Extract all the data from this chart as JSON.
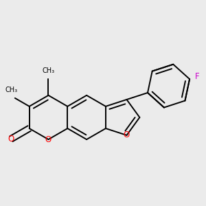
{
  "background_color": "#ebebeb",
  "bond_color": "#000000",
  "oxygen_color": "#ff0000",
  "fluorine_color": "#cc00cc",
  "bond_width": 1.4,
  "dbo": 0.055,
  "figsize": [
    3.0,
    3.0
  ],
  "dpi": 100,
  "methyl_labels": [
    "CH₃",
    "CH₃"
  ],
  "O_label": "O",
  "F_label": "F"
}
